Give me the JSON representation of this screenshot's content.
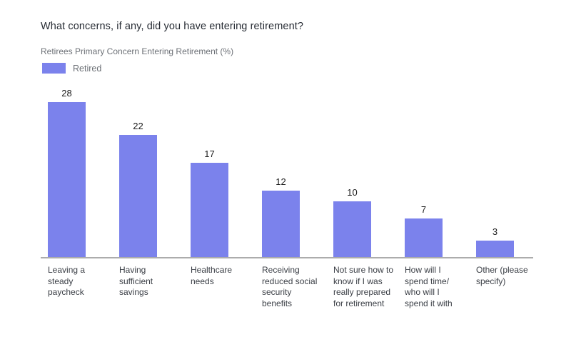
{
  "page": {
    "background": "#ffffff",
    "title": "What concerns, if any, did you have entering retirement?"
  },
  "chart": {
    "subtitle": "Retirees Primary Concern Entering Retirement (%)",
    "legend": {
      "series_label": "Retired"
    }
  },
  "colors": {
    "bar": "#7B82EC",
    "axis_line": "#ACACAC",
    "title_text": "#262B33",
    "subtitle_text": "#6C7076",
    "value_label_text": "#1B1B1B",
    "category_label_text": "#3A3E45"
  },
  "chart_data": {
    "type": "bar",
    "title": "Retirees Primary Concern Entering Retirement (%)",
    "question": "What concerns, if any, did you have entering retirement?",
    "unit": "%",
    "series": [
      {
        "name": "Retired",
        "values": [
          28,
          22,
          17,
          12,
          10,
          7,
          3
        ]
      }
    ],
    "categories": [
      "Leaving a steady paycheck",
      "Having sufficient savings",
      "Healthcare needs",
      "Receiving reduced social security benefits",
      "Not sure how to know if I was really prepared for retirement",
      "How will I spend time/ who will I spend it with",
      "Other (please specify)"
    ],
    "category_lines": [
      [
        "Leaving a",
        "steady",
        "paycheck"
      ],
      [
        "Having",
        "sufficient",
        "savings"
      ],
      [
        "Healthcare",
        "needs"
      ],
      [
        "Receiving",
        "reduced social",
        "security",
        "benefits"
      ],
      [
        "Not sure how to",
        "know if I was",
        "really prepared",
        "for retirement"
      ],
      [
        "How will I",
        "spend time/",
        "who will I",
        "spend it with"
      ],
      [
        "Other (please",
        "specify)"
      ]
    ],
    "values": [
      28,
      22,
      17,
      12,
      10,
      7,
      3
    ],
    "value_labels_shown": true,
    "ylim": [
      0,
      28
    ],
    "grid": false,
    "yaxis_shown": false,
    "legend_position": "top-left"
  }
}
